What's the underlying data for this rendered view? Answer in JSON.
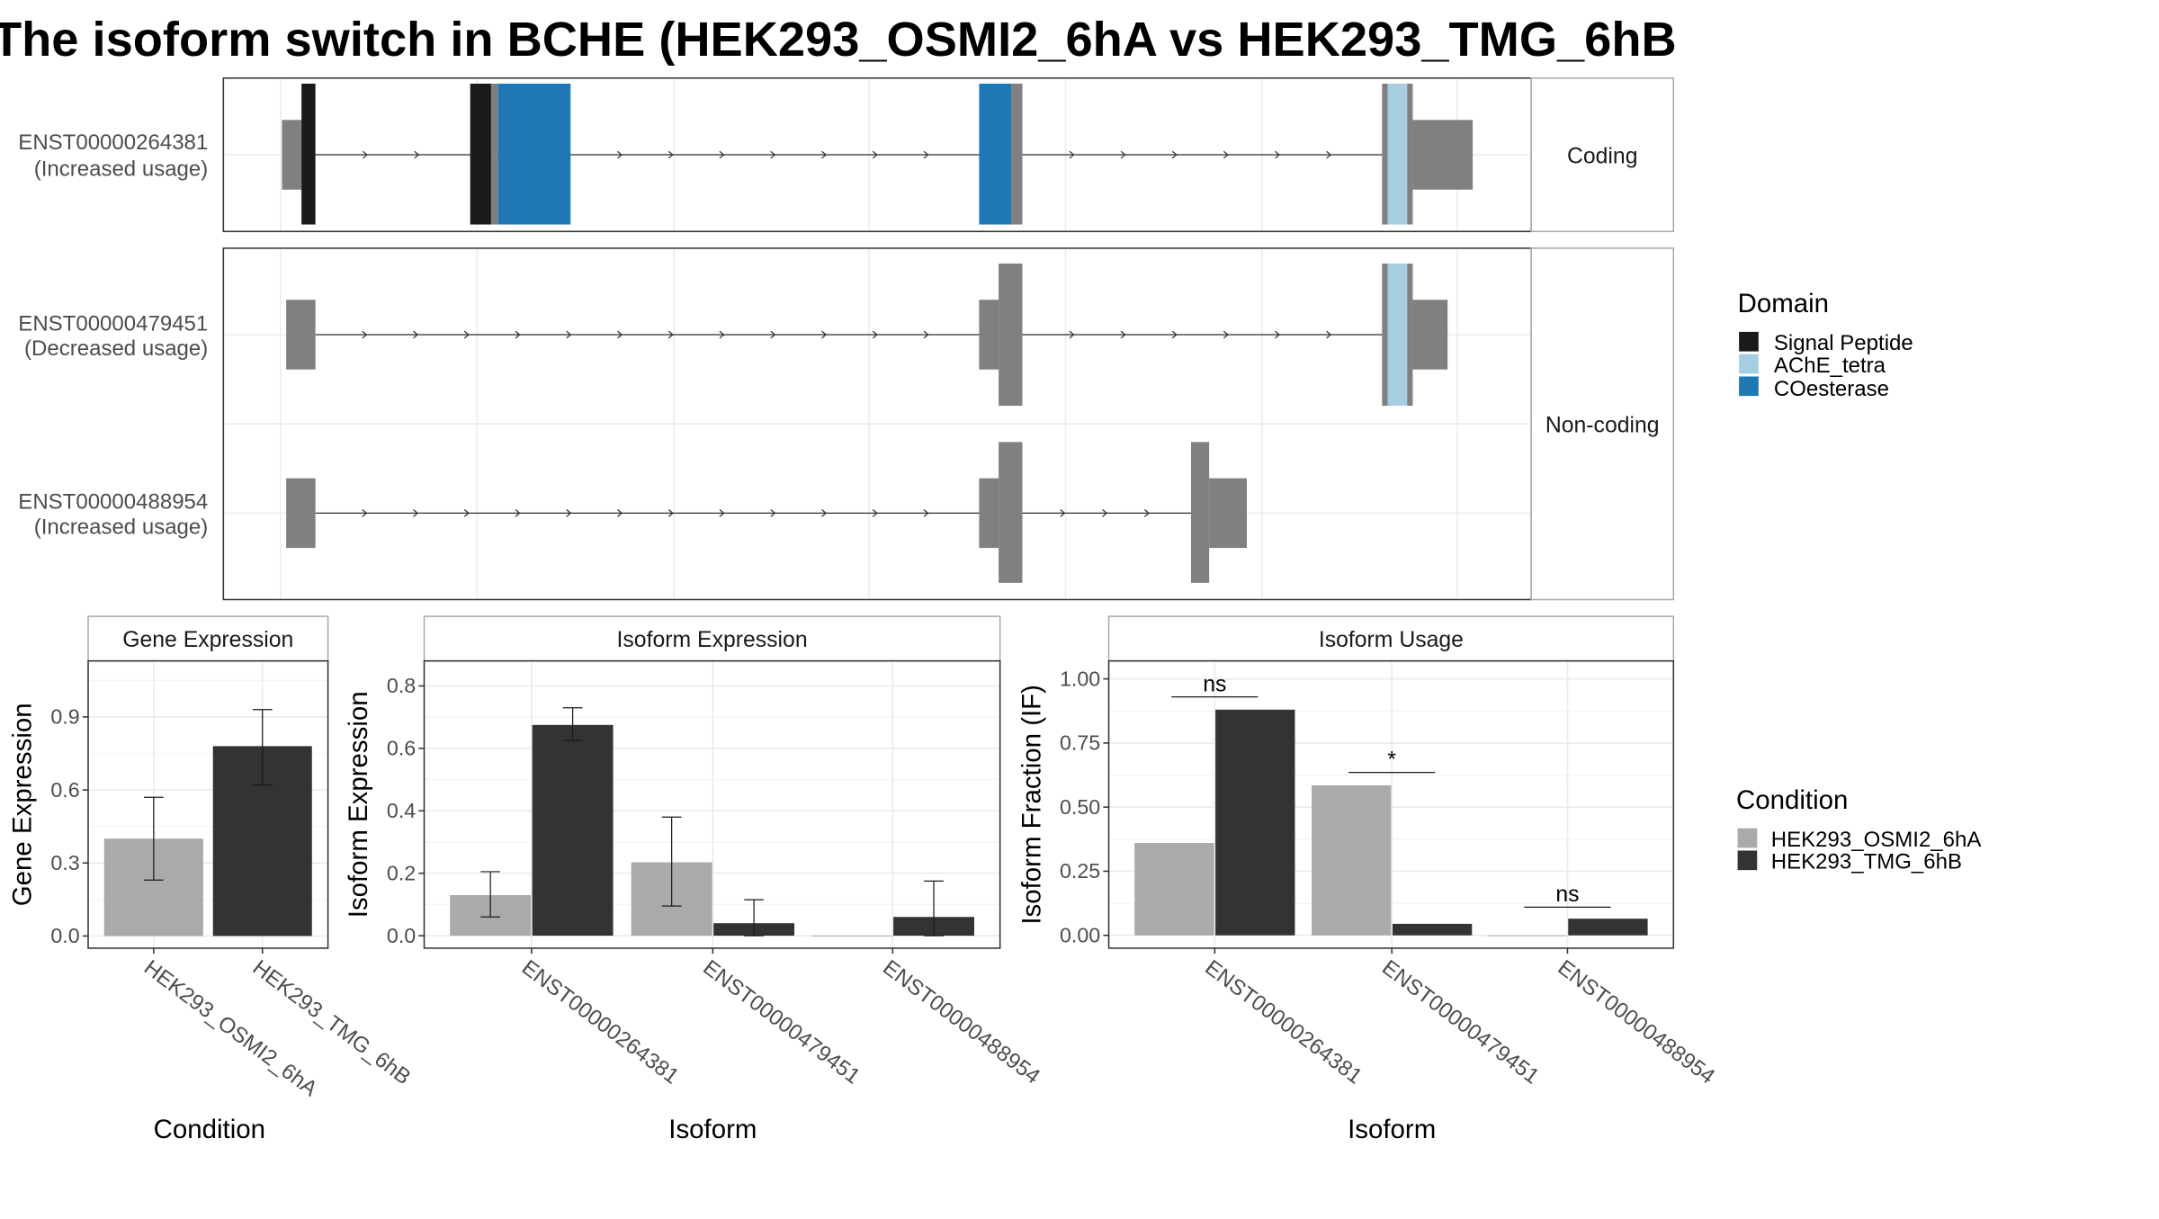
{
  "title": "The isoform switch in BCHE (HEK293_OSMI2_6hA vs HEK293_TMG_6hB",
  "colors": {
    "signal_peptide": "#1a1a1a",
    "ache_tetra": "#a6cee3",
    "coesterase": "#1f78b4",
    "exon_grey": "#808080",
    "condA": "#aaaaaa",
    "condB": "#333333",
    "grid": "#ebebeb",
    "strip_bg": "#ffffff"
  },
  "structure": {
    "facets": [
      {
        "label": "Coding",
        "transcripts": [
          0
        ]
      },
      {
        "label": "Non-coding",
        "transcripts": [
          1,
          2
        ]
      }
    ],
    "transcripts": [
      {
        "id": "ENST00000264381",
        "usage": "(Increased usage)"
      },
      {
        "id": "ENST00000479451",
        "usage": "(Decreased usage)"
      },
      {
        "id": "ENST00000488954",
        "usage": "(Increased usage)"
      }
    ],
    "domain_legend": {
      "title": "Domain",
      "entries": [
        {
          "label": "Signal Peptide",
          "color": "#1a1a1a"
        },
        {
          "label": "AChE_tetra",
          "color": "#a6cee3"
        },
        {
          "label": "COesterase",
          "color": "#1f78b4"
        }
      ]
    }
  },
  "chart_data": [
    {
      "type": "bar",
      "panel": "Gene Expression",
      "xlabel": "Condition",
      "ylabel": "Gene Expression",
      "categories": [
        "HEK293_OSMI2_6hA",
        "HEK293_TMG_6hB"
      ],
      "values": [
        0.4,
        0.78
      ],
      "error_low": [
        0.23,
        0.62
      ],
      "error_high": [
        0.57,
        0.93
      ],
      "yticks": [
        0.0,
        0.3,
        0.6,
        0.9
      ],
      "ytick_labels": [
        "0.0",
        "0.3",
        "0.6",
        "0.9"
      ],
      "ylim": [
        -0.05,
        1.13
      ]
    },
    {
      "type": "bar",
      "panel": "Isoform Expression",
      "xlabel": "Isoform",
      "ylabel": "Isoform Expression",
      "categories": [
        "ENST00000264381",
        "ENST00000479451",
        "ENST00000488954"
      ],
      "series": [
        {
          "name": "HEK293_OSMI2_6hA",
          "values": [
            0.13,
            0.235,
            0.0
          ],
          "error_low": [
            0.06,
            0.095,
            0.0
          ],
          "error_high": [
            0.205,
            0.38,
            0.0
          ]
        },
        {
          "name": "HEK293_TMG_6hB",
          "values": [
            0.675,
            0.04,
            0.06
          ],
          "error_low": [
            0.625,
            0.0,
            0.0
          ],
          "error_high": [
            0.73,
            0.115,
            0.175
          ]
        }
      ],
      "yticks": [
        0.0,
        0.2,
        0.4,
        0.6,
        0.8
      ],
      "ytick_labels": [
        "0.0",
        "0.2",
        "0.4",
        "0.6",
        "0.8"
      ],
      "ylim": [
        -0.04,
        0.88
      ]
    },
    {
      "type": "bar",
      "panel": "Isoform Usage",
      "xlabel": "Isoform",
      "ylabel": "Isoform Fraction (IF)",
      "categories": [
        "ENST00000264381",
        "ENST00000479451",
        "ENST00000488954"
      ],
      "series": [
        {
          "name": "HEK293_OSMI2_6hA",
          "values": [
            0.36,
            0.585,
            0.0
          ]
        },
        {
          "name": "HEK293_TMG_6hB",
          "values": [
            0.88,
            0.045,
            0.065
          ]
        }
      ],
      "significance": [
        "ns",
        "*",
        "ns"
      ],
      "significance_y": [
        0.93,
        0.635,
        0.11
      ],
      "yticks": [
        0.0,
        0.25,
        0.5,
        0.75,
        1.0
      ],
      "ytick_labels": [
        "0.00",
        "0.25",
        "0.50",
        "0.75",
        "1.00"
      ],
      "ylim": [
        -0.05,
        1.07
      ]
    }
  ],
  "condition_legend": {
    "title": "Condition",
    "entries": [
      {
        "label": "HEK293_OSMI2_6hA",
        "color": "#aaaaaa"
      },
      {
        "label": "HEK293_TMG_6hB",
        "color": "#333333"
      }
    ]
  }
}
